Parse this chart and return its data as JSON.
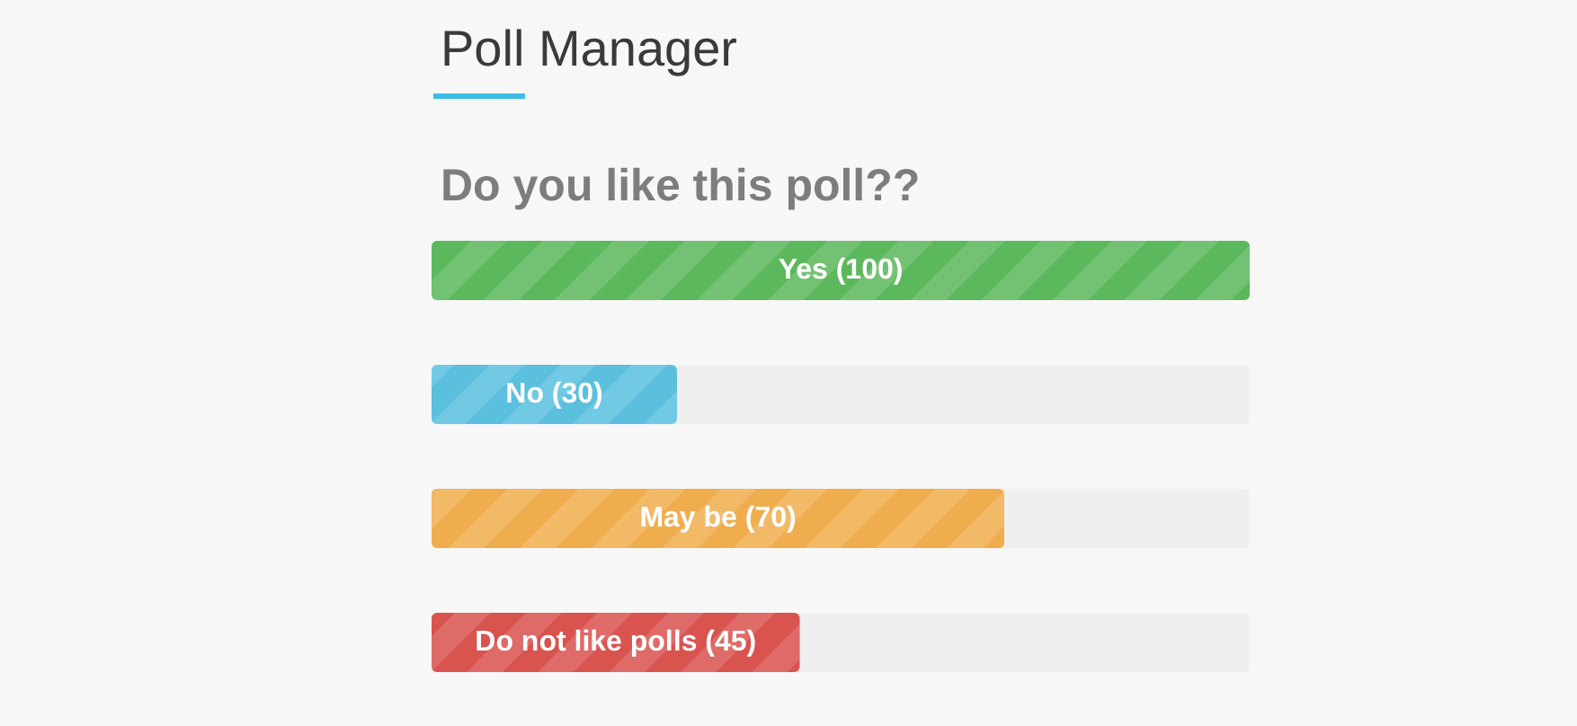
{
  "chart_data": {
    "type": "bar",
    "orientation": "horizontal",
    "title": "Poll Manager",
    "subtitle": "Do you like this poll??",
    "categories": [
      "Yes",
      "No",
      "May be",
      "Do not like polls"
    ],
    "values": [
      100,
      30,
      70,
      45
    ],
    "value_labels": [
      "(100)",
      "(30)",
      "(70)",
      "(45)"
    ],
    "colors": [
      "#5cb85c",
      "#5bc0de",
      "#f0ad4e",
      "#d9534f"
    ],
    "tick_labels": false
  }
}
